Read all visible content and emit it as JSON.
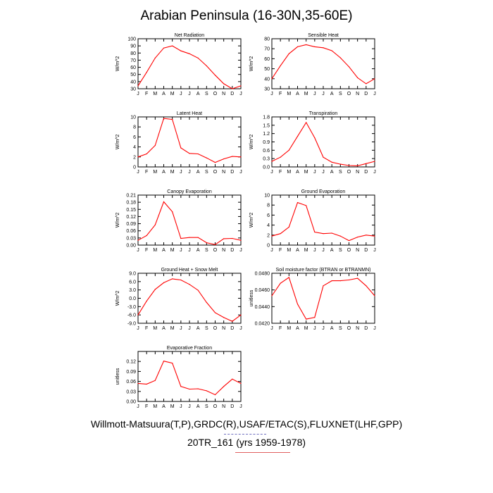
{
  "title": "Arabian Peninsula (16-30N,35-60E)",
  "footer": {
    "line1": "Willmott-Matsuura(T,P),GRDC(R),USAF/ETAC(S),FLUXNET(LHF,GPP)",
    "line2": "20TR_161 (yrs 1959-1978)"
  },
  "colors": {
    "series": "#ff0000",
    "axis": "#000000"
  },
  "chart_data": [
    {
      "type": "line",
      "title": "Net Radiation",
      "ylabel": "W/m^2",
      "xlabel": "",
      "categories": [
        "J",
        "F",
        "M",
        "A",
        "M",
        "J",
        "J",
        "A",
        "S",
        "O",
        "N",
        "D",
        "J"
      ],
      "values": [
        34,
        53,
        73,
        87,
        90,
        83,
        79,
        73,
        62,
        49,
        37,
        30,
        34
      ],
      "ylim": [
        30,
        100
      ],
      "yticks": [
        "30",
        "40",
        "50",
        "60",
        "70",
        "80",
        "90",
        "100"
      ]
    },
    {
      "type": "line",
      "title": "Sensible Heat",
      "ylabel": "W/m^2",
      "xlabel": "",
      "categories": [
        "J",
        "F",
        "M",
        "A",
        "M",
        "J",
        "J",
        "A",
        "S",
        "O",
        "N",
        "D",
        "J"
      ],
      "values": [
        40,
        53,
        65,
        72,
        74,
        72,
        71,
        68,
        61,
        52,
        41,
        35,
        40
      ],
      "ylim": [
        30,
        80
      ],
      "yticks": [
        "30",
        "40",
        "50",
        "60",
        "70",
        "80"
      ]
    },
    {
      "type": "line",
      "title": "Latent Heat",
      "ylabel": "W/m^2",
      "xlabel": "",
      "categories": [
        "J",
        "F",
        "M",
        "A",
        "M",
        "J",
        "J",
        "A",
        "S",
        "O",
        "N",
        "D",
        "J"
      ],
      "values": [
        2.0,
        2.6,
        4.3,
        9.7,
        9.5,
        3.8,
        2.7,
        2.6,
        1.8,
        0.9,
        1.6,
        2.1,
        2.0
      ],
      "ylim": [
        0,
        10
      ],
      "yticks": [
        "0",
        "2",
        "4",
        "6",
        "8",
        "10"
      ]
    },
    {
      "type": "line",
      "title": "Transpiration",
      "ylabel": "W/m^2",
      "xlabel": "",
      "categories": [
        "J",
        "F",
        "M",
        "A",
        "M",
        "J",
        "J",
        "A",
        "S",
        "O",
        "N",
        "D",
        "J"
      ],
      "values": [
        0.2,
        0.35,
        0.6,
        1.1,
        1.6,
        1.05,
        0.35,
        0.17,
        0.1,
        0.05,
        0.04,
        0.12,
        0.2
      ],
      "ylim": [
        0,
        1.8
      ],
      "yticks": [
        "0.0",
        "0.3",
        "0.6",
        "0.9",
        "1.2",
        "1.5",
        "1.8"
      ]
    },
    {
      "type": "line",
      "title": "Canopy Evaporation",
      "ylabel": "W/m^2",
      "xlabel": "",
      "categories": [
        "J",
        "F",
        "M",
        "A",
        "M",
        "J",
        "J",
        "A",
        "S",
        "O",
        "N",
        "D",
        "J"
      ],
      "values": [
        0.02,
        0.04,
        0.085,
        0.182,
        0.14,
        0.028,
        0.032,
        0.032,
        0.01,
        0.002,
        0.027,
        0.028,
        0.02
      ],
      "ylim": [
        0,
        0.21
      ],
      "yticks": [
        "0.00",
        "0.03",
        "0.06",
        "0.09",
        "0.12",
        "0.15",
        "0.18",
        "0.21"
      ]
    },
    {
      "type": "line",
      "title": "Ground Evaporation",
      "ylabel": "W/m^2",
      "xlabel": "",
      "categories": [
        "J",
        "F",
        "M",
        "A",
        "M",
        "J",
        "J",
        "A",
        "S",
        "O",
        "N",
        "D",
        "J"
      ],
      "values": [
        1.8,
        2.3,
        3.6,
        8.5,
        7.9,
        2.6,
        2.3,
        2.4,
        1.8,
        0.9,
        1.6,
        2.0,
        1.8
      ],
      "ylim": [
        0,
        10
      ],
      "yticks": [
        "0",
        "2",
        "4",
        "6",
        "8",
        "10"
      ]
    },
    {
      "type": "line",
      "title": "Ground Heat + Snow Melt",
      "ylabel": "W/m^2",
      "xlabel": "",
      "categories": [
        "J",
        "F",
        "M",
        "A",
        "M",
        "J",
        "J",
        "A",
        "S",
        "O",
        "N",
        "D",
        "J"
      ],
      "values": [
        -6.0,
        -1.0,
        3.2,
        5.6,
        7.0,
        6.6,
        5.0,
        2.9,
        -1.5,
        -5.2,
        -6.9,
        -8.3,
        -6.0
      ],
      "ylim": [
        -9,
        9
      ],
      "yticks": [
        "-9.0",
        "-6.0",
        "-3.0",
        "0.0",
        "3.0",
        "6.0",
        "9.0"
      ]
    },
    {
      "type": "line",
      "title": "Soil moisture factor (BTRAN or BTRANMN)",
      "ylabel": "unitless",
      "xlabel": "",
      "categories": [
        "J",
        "F",
        "M",
        "A",
        "M",
        "J",
        "J",
        "A",
        "S",
        "O",
        "N",
        "D",
        "J"
      ],
      "values": [
        0.0453,
        0.0468,
        0.0475,
        0.0443,
        0.0425,
        0.0427,
        0.0465,
        0.0471,
        0.0471,
        0.0472,
        0.0474,
        0.0465,
        0.0453
      ],
      "ylim": [
        0.042,
        0.048
      ],
      "yticks": [
        "0.0420",
        "0.0440",
        "0.0460",
        "0.0480"
      ]
    },
    {
      "type": "line",
      "title": "Evaporative Fraction",
      "ylabel": "unitless",
      "xlabel": "",
      "categories": [
        "J",
        "F",
        "M",
        "A",
        "M",
        "J",
        "J",
        "A",
        "S",
        "O",
        "N",
        "D",
        "J"
      ],
      "values": [
        0.054,
        0.052,
        0.063,
        0.121,
        0.115,
        0.045,
        0.037,
        0.038,
        0.032,
        0.02,
        0.045,
        0.067,
        0.054
      ],
      "ylim": [
        0,
        0.15
      ],
      "yticks": [
        "0.00",
        "0.03",
        "0.06",
        "0.09",
        "0.12"
      ]
    }
  ]
}
